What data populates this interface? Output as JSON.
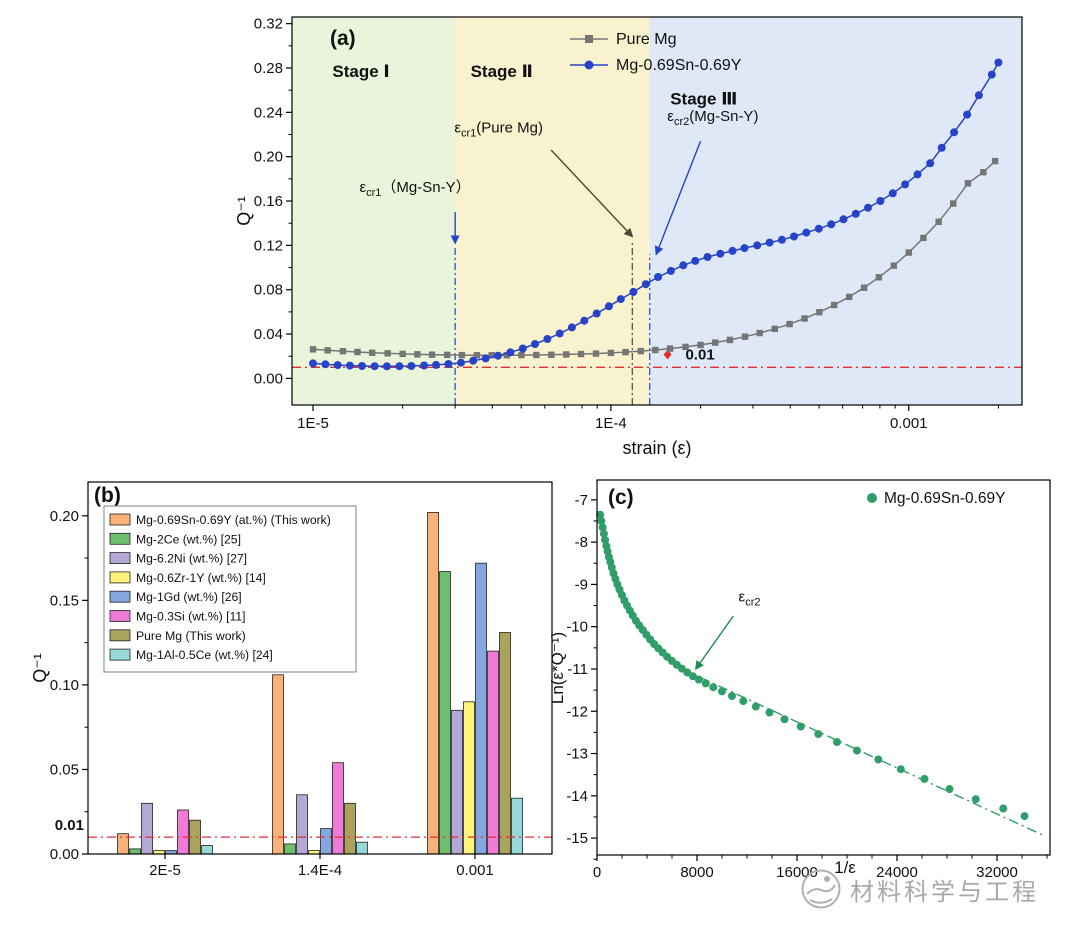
{
  "watermark": {
    "text": "材料科学与工程",
    "logo": "globe-hand-icon",
    "color": "#a8a8a8"
  },
  "chart_data": [
    {
      "id": "a",
      "type": "line",
      "panel_label": "(a)",
      "xlabel": "strain (ε)",
      "ylabel": "Q⁻¹",
      "xscale": "log",
      "xlim": [
        8.5e-06,
        0.0024
      ],
      "ylim": [
        -0.024,
        0.326
      ],
      "x_ticks": [
        {
          "v": 1e-05,
          "t": "1E-5"
        },
        {
          "v": 0.0001,
          "t": "1E-4"
        },
        {
          "v": 0.001,
          "t": "0.001"
        }
      ],
      "y_ticks": [
        {
          "v": 0.0,
          "t": "0.00"
        },
        {
          "v": 0.04,
          "t": "0.04"
        },
        {
          "v": 0.08,
          "t": "0.08"
        },
        {
          "v": 0.12,
          "t": "0.12"
        },
        {
          "v": 0.16,
          "t": "0.16"
        },
        {
          "v": 0.2,
          "t": "0.20"
        },
        {
          "v": 0.24,
          "t": "0.24"
        },
        {
          "v": 0.28,
          "t": "0.28"
        },
        {
          "v": 0.32,
          "t": "0.32"
        }
      ],
      "stage_label_color": "#e01818",
      "stages": [
        {
          "label": "Stage Ⅰ",
          "from": 8.5e-06,
          "to": 3e-05,
          "bg": "#eaf4da",
          "label_x": 1.45e-05,
          "label_y": 0.272
        },
        {
          "label": "Stage Ⅱ",
          "from": 3e-05,
          "to": 0.000135,
          "bg": "#f8f2cf",
          "label_x": 4.3e-05,
          "label_y": 0.272
        },
        {
          "label": "Stage Ⅲ",
          "from": 0.000135,
          "to": 0.0024,
          "bg": "#dee8f7",
          "label_x": 0.000205,
          "label_y": 0.247
        }
      ],
      "vlines": [
        {
          "x": 3e-05,
          "top": 0.118,
          "color": "#2743c7"
        },
        {
          "x": 0.000118,
          "top": 0.124,
          "color": "#4a4a38"
        },
        {
          "x": 0.000135,
          "top": 0.112,
          "color": "#2743c7"
        }
      ],
      "threshold": {
        "y": 0.01,
        "color": "#e03030",
        "label": "0.01",
        "diamond_x": 0.000155,
        "diamond_y": 0.0215,
        "label_x": 0.000178,
        "label_y": 0.0215
      },
      "legend": [
        "Pure Mg",
        "Mg-0.69Sn-0.69Y"
      ],
      "annotations": [
        {
          "pre": "ε",
          "sub": "cr1",
          "post": "（Mg-Sn-Y）",
          "color": "#2743c7",
          "tx": 2.2e-05,
          "ty": 0.168,
          "ax1": 3e-05,
          "ay1": 0.15,
          "ax2": 3e-05,
          "ay2": 0.122
        },
        {
          "pre": "ε",
          "sub": "cr1",
          "post": "(Pure Mg)",
          "color": "#4a4a38",
          "tx": 4.2e-05,
          "ty": 0.222,
          "ax1": 6.3e-05,
          "ay1": 0.206,
          "ax2": 0.000118,
          "ay2": 0.128
        },
        {
          "pre": "ε",
          "sub": "cr2",
          "post": "(Mg-Sn-Y)",
          "color": "#2743c7",
          "tx": 0.00022,
          "ty": 0.232,
          "ax1": 0.0002,
          "ay1": 0.214,
          "ax2": 0.000142,
          "ay2": 0.112
        }
      ],
      "series": [
        {
          "name": "Pure Mg",
          "color": "#757575",
          "marker": "square",
          "points": [
            [
              1e-05,
              0.0262
            ],
            [
              1.12e-05,
              0.0253
            ],
            [
              1.26e-05,
              0.0245
            ],
            [
              1.41e-05,
              0.0238
            ],
            [
              1.58e-05,
              0.0231
            ],
            [
              1.78e-05,
              0.0226
            ],
            [
              2e-05,
              0.0221
            ],
            [
              2.24e-05,
              0.0217
            ],
            [
              2.51e-05,
              0.0214
            ],
            [
              2.82e-05,
              0.0212
            ],
            [
              3.16e-05,
              0.021
            ],
            [
              3.55e-05,
              0.0209
            ],
            [
              3.98e-05,
              0.0209
            ],
            [
              4.47e-05,
              0.0209
            ],
            [
              5.01e-05,
              0.021
            ],
            [
              5.62e-05,
              0.0211
            ],
            [
              6.31e-05,
              0.0213
            ],
            [
              7.08e-05,
              0.0216
            ],
            [
              7.94e-05,
              0.022
            ],
            [
              8.91e-05,
              0.0224
            ],
            [
              0.0001,
              0.023
            ],
            [
              0.000112,
              0.0237
            ],
            [
              0.000126,
              0.0246
            ],
            [
              0.000141,
              0.0256
            ],
            [
              0.000158,
              0.0269
            ],
            [
              0.000178,
              0.0284
            ],
            [
              0.0002,
              0.0302
            ],
            [
              0.000224,
              0.0323
            ],
            [
              0.000251,
              0.0347
            ],
            [
              0.000282,
              0.0376
            ],
            [
              0.000316,
              0.0409
            ],
            [
              0.000355,
              0.0447
            ],
            [
              0.000398,
              0.049
            ],
            [
              0.000447,
              0.054
            ],
            [
              0.000501,
              0.0597
            ],
            [
              0.000562,
              0.0662
            ],
            [
              0.000631,
              0.0735
            ],
            [
              0.000708,
              0.0818
            ],
            [
              0.000794,
              0.0912
            ],
            [
              0.000891,
              0.1017
            ],
            [
              0.001,
              0.1135
            ],
            [
              0.00112,
              0.1267
            ],
            [
              0.00126,
              0.1413
            ],
            [
              0.00141,
              0.1577
            ],
            [
              0.00158,
              0.176
            ],
            [
              0.00178,
              0.186
            ],
            [
              0.00195,
              0.196
            ]
          ]
        },
        {
          "name": "Mg-0.69Sn-0.69Y",
          "color": "#2743c7",
          "marker": "circle",
          "points": [
            [
              1e-05,
              0.0135
            ],
            [
              1.1e-05,
              0.0127
            ],
            [
              1.21e-05,
              0.012
            ],
            [
              1.33e-05,
              0.0115
            ],
            [
              1.46e-05,
              0.0112
            ],
            [
              1.61e-05,
              0.011
            ],
            [
              1.77e-05,
              0.0109
            ],
            [
              1.95e-05,
              0.011
            ],
            [
              2.14e-05,
              0.0112
            ],
            [
              2.36e-05,
              0.0116
            ],
            [
              2.59e-05,
              0.0122
            ],
            [
              2.85e-05,
              0.013
            ],
            [
              3.14e-05,
              0.0142
            ],
            [
              3.45e-05,
              0.016
            ],
            [
              3.8e-05,
              0.018
            ],
            [
              4.18e-05,
              0.0205
            ],
            [
              4.6e-05,
              0.0235
            ],
            [
              5.06e-05,
              0.027
            ],
            [
              5.56e-05,
              0.031
            ],
            [
              6.12e-05,
              0.0355
            ],
            [
              6.73e-05,
              0.0405
            ],
            [
              7.4e-05,
              0.046
            ],
            [
              8.14e-05,
              0.052
            ],
            [
              8.96e-05,
              0.0585
            ],
            [
              9.85e-05,
              0.065
            ],
            [
              0.000108,
              0.0715
            ],
            [
              0.000119,
              0.078
            ],
            [
              0.000131,
              0.085
            ],
            [
              0.000144,
              0.0915
            ],
            [
              0.000159,
              0.097
            ],
            [
              0.000175,
              0.102
            ],
            [
              0.000192,
              0.106
            ],
            [
              0.000211,
              0.1095
            ],
            [
              0.000233,
              0.1125
            ],
            [
              0.000256,
              0.115
            ],
            [
              0.000281,
              0.1175
            ],
            [
              0.00031,
              0.12
            ],
            [
              0.000341,
              0.1225
            ],
            [
              0.000375,
              0.125
            ],
            [
              0.000412,
              0.128
            ],
            [
              0.000453,
              0.1315
            ],
            [
              0.000499,
              0.135
            ],
            [
              0.000549,
              0.139
            ],
            [
              0.000604,
              0.1435
            ],
            [
              0.000664,
              0.1485
            ],
            [
              0.00073,
              0.154
            ],
            [
              0.000803,
              0.16
            ],
            [
              0.000884,
              0.167
            ],
            [
              0.000972,
              0.175
            ],
            [
              0.00107,
              0.184
            ],
            [
              0.00118,
              0.194
            ],
            [
              0.00129,
              0.208
            ],
            [
              0.00142,
              0.222
            ],
            [
              0.00157,
              0.238
            ],
            [
              0.00172,
              0.2555
            ],
            [
              0.0019,
              0.274
            ],
            [
              0.002,
              0.285
            ]
          ]
        }
      ]
    },
    {
      "id": "b",
      "type": "bar",
      "panel_label": "(b)",
      "ylabel": "Q⁻¹",
      "categories": [
        "2E-5",
        "1.4E-4",
        "0.001"
      ],
      "ylim": [
        0,
        0.22
      ],
      "y_ticks": [
        {
          "v": 0.0,
          "t": "0.00"
        },
        {
          "v": 0.05,
          "t": "0.05"
        },
        {
          "v": 0.1,
          "t": "0.10"
        },
        {
          "v": 0.15,
          "t": "0.15"
        },
        {
          "v": 0.2,
          "t": "0.20"
        }
      ],
      "threshold": {
        "y": 0.01,
        "label": "0.01",
        "color": "#e03030"
      },
      "series": [
        {
          "name": "Mg-0.69Sn-0.69Y (at.%) (This work)",
          "color": "#f8b179",
          "values": [
            0.012,
            0.106,
            0.202
          ]
        },
        {
          "name": "Mg-2Ce (wt.%) [25]",
          "color": "#6dbe6d",
          "values": [
            0.003,
            0.006,
            0.167
          ]
        },
        {
          "name": "Mg-6.2Ni (wt.%) [27]",
          "color": "#b3a8d6",
          "values": [
            0.03,
            0.035,
            0.085
          ]
        },
        {
          "name": "Mg-0.6Zr-1Y (wt.%) [14]",
          "color": "#fdf37a",
          "values": [
            0.002,
            0.002,
            0.09
          ]
        },
        {
          "name": "Mg-1Gd (wt.%) [26]",
          "color": "#84a7e2",
          "values": [
            0.002,
            0.015,
            0.172
          ]
        },
        {
          "name": "Mg-0.3Si (wt.%) [11]",
          "color": "#ef7ad8",
          "values": [
            0.026,
            0.054,
            0.12
          ]
        },
        {
          "name": "Pure Mg (This work)",
          "color": "#a9a35e",
          "values": [
            0.02,
            0.03,
            0.131
          ]
        },
        {
          "name": "Mg-1Al-0.5Ce (wt.%) [24]",
          "color": "#96d9d9",
          "values": [
            0.005,
            0.007,
            0.033
          ]
        }
      ]
    },
    {
      "id": "c",
      "type": "scatter",
      "panel_label": "(c)",
      "xlabel": "1/ε",
      "ylabel": "Ln(ε*Q⁻¹)",
      "xlim": [
        0,
        36240
      ],
      "ylim": [
        -15.4,
        -6.53
      ],
      "x_ticks": [
        {
          "v": 0,
          "t": "0"
        },
        {
          "v": 8000,
          "t": "8000"
        },
        {
          "v": 16000,
          "t": "16000"
        },
        {
          "v": 24000,
          "t": "24000"
        },
        {
          "v": 32000,
          "t": "32000"
        }
      ],
      "y_ticks": [
        {
          "v": -7,
          "t": "-7"
        },
        {
          "v": -8,
          "t": "-8"
        },
        {
          "v": -9,
          "t": "-9"
        },
        {
          "v": -10,
          "t": "-10"
        },
        {
          "v": -11,
          "t": "-11"
        },
        {
          "v": -12,
          "t": "-12"
        },
        {
          "v": -13,
          "t": "-13"
        },
        {
          "v": -14,
          "t": "-14"
        },
        {
          "v": -15,
          "t": "-15"
        }
      ],
      "fit_line": {
        "x1": 6800,
        "y1": -11.0,
        "x2": 35600,
        "y2": -14.92,
        "color": "#2f9e68"
      },
      "annotation": {
        "pre": "ε",
        "sub": "cr2",
        "post": "",
        "color": "#1e8c50",
        "tx": 12200,
        "ty": -9.4,
        "ax1": 10900,
        "ay1": -9.75,
        "ax2": 7900,
        "ay2": -11.0
      },
      "series": [
        {
          "name": "Mg-0.69Sn-0.69Y",
          "color": "#2f9e68",
          "marker": "circle",
          "points": [
            [
              250,
              -7.35
            ],
            [
              350,
              -7.5
            ],
            [
              450,
              -7.65
            ],
            [
              550,
              -7.8
            ],
            [
              650,
              -7.95
            ],
            [
              750,
              -8.09
            ],
            [
              850,
              -8.22
            ],
            [
              950,
              -8.35
            ],
            [
              1060,
              -8.47
            ],
            [
              1180,
              -8.6
            ],
            [
              1320,
              -8.74
            ],
            [
              1470,
              -8.87
            ],
            [
              1630,
              -9.0
            ],
            [
              1800,
              -9.12
            ],
            [
              1990,
              -9.25
            ],
            [
              2190,
              -9.38
            ],
            [
              2400,
              -9.5
            ],
            [
              2630,
              -9.62
            ],
            [
              2870,
              -9.74
            ],
            [
              3120,
              -9.86
            ],
            [
              3380,
              -9.97
            ],
            [
              3660,
              -10.08
            ],
            [
              3950,
              -10.19
            ],
            [
              4250,
              -10.3
            ],
            [
              4570,
              -10.41
            ],
            [
              4900,
              -10.51
            ],
            [
              5250,
              -10.61
            ],
            [
              5610,
              -10.71
            ],
            [
              5990,
              -10.81
            ],
            [
              6380,
              -10.9
            ],
            [
              6790,
              -10.99
            ],
            [
              7220,
              -11.08
            ],
            [
              7670,
              -11.17
            ],
            [
              8140,
              -11.25
            ],
            [
              8700,
              -11.34
            ],
            [
              9300,
              -11.43
            ],
            [
              10000,
              -11.53
            ],
            [
              10800,
              -11.64
            ],
            [
              11700,
              -11.76
            ],
            [
              12700,
              -11.89
            ],
            [
              13800,
              -12.03
            ],
            [
              15000,
              -12.19
            ],
            [
              16300,
              -12.36
            ],
            [
              17700,
              -12.54
            ],
            [
              19200,
              -12.73
            ],
            [
              20800,
              -12.93
            ],
            [
              22500,
              -13.14
            ],
            [
              24300,
              -13.37
            ],
            [
              26200,
              -13.6
            ],
            [
              28200,
              -13.84
            ],
            [
              30300,
              -14.08
            ],
            [
              32500,
              -14.3
            ],
            [
              34200,
              -14.48
            ]
          ]
        }
      ]
    }
  ]
}
